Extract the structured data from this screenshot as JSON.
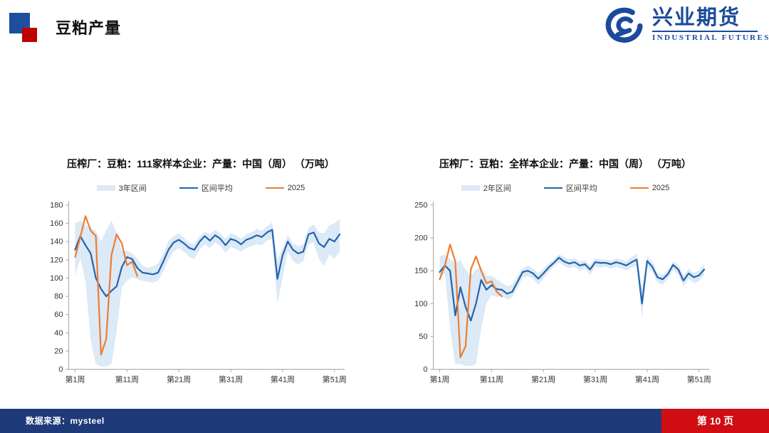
{
  "header": {
    "title": "豆粕产量"
  },
  "logo": {
    "name": "兴业期货",
    "name_en": "INDUSTRIAL FUTURES"
  },
  "footer": {
    "source": "数据来源：mysteel",
    "page": "第 10 页"
  },
  "colors": {
    "band": "#dce9f6",
    "avg_line": "#2364ae",
    "line_2025": "#ed7d31",
    "axis": "#a6a6a6",
    "tick_text": "#333333",
    "header_blue": "#1f4e9e",
    "header_red": "#c00000",
    "logo_blue": "#1b4a9b",
    "footer_navy": "#1e3a78",
    "footer_red": "#cf0d12"
  },
  "chart_data": [
    {
      "type": "line",
      "title": "压榨厂：豆粕：111家样本企业：产量：中国（周） （万吨）",
      "legend": [
        "3年区间",
        "区间平均",
        "2025"
      ],
      "ylim": [
        0,
        180
      ],
      "ytick_step": 20,
      "weeks": 52,
      "x_tick_weeks": [
        1,
        11,
        21,
        31,
        41,
        51
      ],
      "x_tick_labels": [
        "第1周",
        "第11周",
        "第21周",
        "第31周",
        "第41周",
        "第51周"
      ],
      "grid": false,
      "legend_position": "top",
      "series": [
        {
          "name": "3年区间",
          "type": "band",
          "upper": [
            160,
            163,
            158,
            155,
            152,
            140,
            152,
            163,
            150,
            130,
            130,
            127,
            121,
            114,
            111,
            113,
            116,
            127,
            140,
            146,
            149,
            144,
            139,
            137,
            146,
            151,
            148,
            153,
            149,
            143,
            149,
            147,
            143,
            148,
            150,
            154,
            152,
            157,
            161,
            121,
            133,
            147,
            138,
            135,
            137,
            155,
            159,
            150,
            149,
            158,
            160,
            165
          ],
          "lower": [
            102,
            122,
            96,
            32,
            6,
            3,
            3,
            6,
            42,
            90,
            97,
            101,
            99,
            97,
            96,
            95,
            97,
            107,
            120,
            129,
            133,
            129,
            123,
            121,
            131,
            137,
            133,
            139,
            135,
            128,
            134,
            132,
            129,
            133,
            135,
            137,
            136,
            141,
            143,
            71,
            101,
            129,
            119,
            115,
            119,
            137,
            139,
            121,
            113,
            126,
            121,
            129
          ]
        },
        {
          "name": "区间平均",
          "type": "line",
          "values": [
            131,
            146,
            136,
            127,
            100,
            88,
            80,
            86,
            91,
            112,
            123,
            121,
            111,
            106,
            105,
            104,
            106,
            118,
            131,
            139,
            142,
            138,
            133,
            131,
            140,
            146,
            141,
            147,
            143,
            136,
            143,
            141,
            137,
            142,
            144,
            147,
            145,
            150,
            153,
            99,
            125,
            140,
            131,
            127,
            129,
            148,
            150,
            138,
            134,
            143,
            140,
            148
          ]
        },
        {
          "name": "2025",
          "type": "line",
          "values": [
            123,
            145,
            168,
            152,
            146,
            16,
            33,
            125,
            148,
            138,
            114,
            118,
            102
          ]
        }
      ]
    },
    {
      "type": "line",
      "title": "压榨厂：豆粕：全样本企业：产量：中国（周） （万吨）",
      "legend": [
        "2年区间",
        "区间平均",
        "2025"
      ],
      "ylim": [
        0,
        250
      ],
      "ytick_step": 50,
      "weeks": 52,
      "x_tick_weeks": [
        1,
        11,
        21,
        31,
        41,
        51
      ],
      "x_tick_labels": [
        "第1周",
        "第11周",
        "第21周",
        "第31周",
        "第41周",
        "第51周"
      ],
      "grid": false,
      "legend_position": "top",
      "series": [
        {
          "name": "2年区间",
          "type": "band",
          "upper": [
            172,
            175,
            168,
            162,
            166,
            152,
            142,
            152,
            156,
            142,
            142,
            137,
            132,
            126,
            129,
            142,
            154,
            158,
            153,
            146,
            153,
            161,
            167,
            175,
            171,
            167,
            169,
            164,
            166,
            158,
            169,
            167,
            167,
            165,
            169,
            167,
            164,
            171,
            176,
            125,
            172,
            163,
            147,
            143,
            151,
            164,
            159,
            143,
            153,
            147,
            150,
            160
          ],
          "lower": [
            140,
            146,
            62,
            8,
            8,
            5,
            5,
            8,
            62,
            100,
            113,
            110,
            112,
            106,
            110,
            124,
            140,
            142,
            138,
            129,
            138,
            148,
            156,
            163,
            157,
            154,
            156,
            150,
            153,
            144,
            156,
            155,
            156,
            153,
            156,
            154,
            150,
            155,
            158,
            78,
            157,
            148,
            132,
            129,
            138,
            152,
            144,
            126,
            138,
            131,
            134,
            144
          ]
        },
        {
          "name": "区间平均",
          "type": "line",
          "values": [
            148,
            158,
            150,
            82,
            125,
            95,
            74,
            100,
            136,
            121,
            128,
            122,
            121,
            115,
            118,
            133,
            148,
            150,
            146,
            138,
            146,
            155,
            162,
            170,
            164,
            161,
            163,
            158,
            160,
            152,
            163,
            162,
            162,
            160,
            163,
            161,
            158,
            163,
            167,
            100,
            165,
            156,
            140,
            137,
            145,
            159,
            152,
            135,
            146,
            140,
            143,
            152
          ]
        },
        {
          "name": "2025",
          "type": "line",
          "values": [
            137,
            158,
            190,
            164,
            18,
            35,
            152,
            172,
            150,
            131,
            134,
            118,
            111
          ]
        }
      ]
    }
  ]
}
